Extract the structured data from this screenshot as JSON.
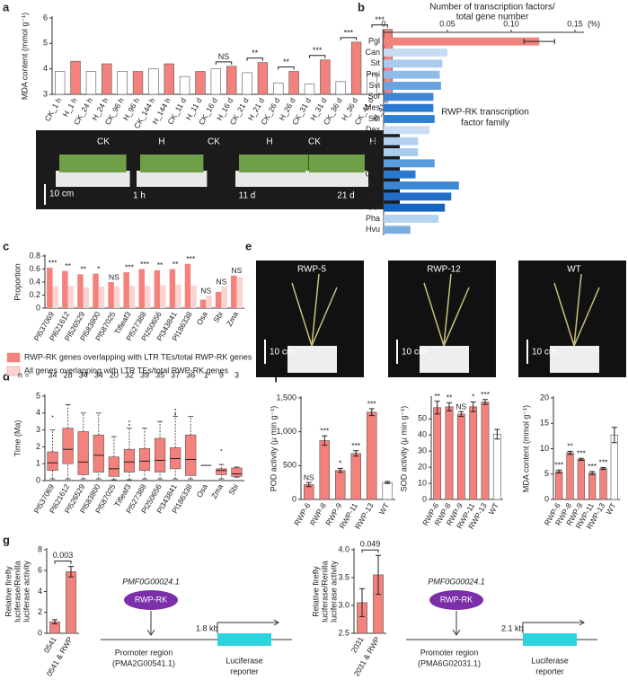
{
  "panel_labels": [
    "a",
    "b",
    "c",
    "d",
    "e",
    "f",
    "g"
  ],
  "photos": {
    "a": {
      "labels": [
        "CK",
        "H",
        "CK",
        "H",
        "CK",
        "H"
      ],
      "times": [
        "1 h",
        "11 d",
        "21 d"
      ],
      "scale": "10 cm"
    },
    "e": {
      "labels": [
        "RWP-5",
        "RWP-12",
        "WT"
      ],
      "scale": "10 cm"
    }
  },
  "diagrams": [
    {
      "tf_gene": "PMF0G00024.1",
      "tf": "RWP-RK",
      "distance": "1.8 kb",
      "promoter": [
        "Promoter region",
        "(PMA2G00541.1)"
      ],
      "reporter": [
        "Luciferase",
        "reporter"
      ]
    },
    {
      "tf_gene": "PMF0G00024.1",
      "tf": "RWP-RK",
      "distance": "2.1 kb",
      "promoter": [
        "Promoter region",
        "(PMA6G02031.1)"
      ],
      "reporter": [
        "Luciferase",
        "reporter"
      ]
    }
  ],
  "chart_data": [
    {
      "type": "bar",
      "ylabel": [
        "MDA content (mmol g⁻¹)"
      ],
      "bracket": true,
      "categories": [
        "CK_1 h",
        "H_1 h",
        "CK_24 h",
        "H_24 h",
        "CK_96 h",
        "H_96 h",
        "CK_144 h",
        "H_144 h",
        "CK_11 d",
        "H_11 d",
        "CK_16 d",
        "H_16 d",
        "CK_21 d",
        "H_21 d",
        "CK_26 d",
        "H_26 d",
        "CK_31 d",
        "H_31 d",
        "CK_36 d",
        "H_36 d",
        "CK_41 d",
        "H_41 d"
      ],
      "values": [
        3.9,
        4.3,
        3.9,
        4.2,
        3.9,
        3.9,
        4.0,
        4.2,
        3.7,
        3.9,
        4.0,
        4.1,
        3.85,
        4.25,
        3.45,
        3.9,
        3.4,
        4.35,
        3.5,
        5.05,
        3.8,
        5.55
      ],
      "colors": [
        "#ffffff",
        "#f4827c",
        "#ffffff",
        "#f4827c",
        "#ffffff",
        "#f4827c",
        "#ffffff",
        "#f4827c",
        "#ffffff",
        "#f4827c",
        "#ffffff",
        "#f4827c",
        "#ffffff",
        "#f4827c",
        "#ffffff",
        "#f4827c",
        "#ffffff",
        "#f4827c",
        "#ffffff",
        "#f4827c",
        "#ffffff",
        "#f4827c"
      ],
      "significance": [
        null,
        null,
        null,
        null,
        null,
        null,
        null,
        null,
        null,
        null,
        null,
        "NS",
        null,
        "**",
        null,
        "**",
        null,
        "***",
        null,
        "***",
        null,
        "***"
      ],
      "ylim": [
        3,
        6
      ],
      "yticks": [
        3,
        4,
        5,
        6
      ]
    },
    {
      "type": "hbar",
      "title": [
        "Number of transcription factors/",
        "total gene number"
      ],
      "unit": "(%)",
      "annotation": [
        "RWP-RK transcription",
        "factor family"
      ],
      "categories": [
        "Pgl",
        "Can",
        "Sit",
        "Pmi",
        "Svi",
        "Sof",
        "Mes",
        "Sbi",
        "Dex",
        "Dol",
        "Eco",
        "Zma",
        "Osa",
        "Bdi",
        "Ath",
        "Oth",
        "Pha",
        "Hvu"
      ],
      "values": [
        0.122,
        0.05,
        0.046,
        0.044,
        0.045,
        0.039,
        0.039,
        0.04,
        0.036,
        0.027,
        0.027,
        0.04,
        0.025,
        0.059,
        0.053,
        0.048,
        0.043,
        0.021
      ],
      "errors": [
        0.012,
        null,
        null,
        null,
        null,
        null,
        null,
        null,
        null,
        null,
        null,
        null,
        null,
        null,
        null,
        null,
        null,
        null
      ],
      "colors": [
        "#f4827c",
        "#c5dcf2",
        "#a8cbee",
        "#8fbbe8",
        "#6aa4e0",
        "#3e87d6",
        "#2a79cf",
        "#2f7fd2",
        "#c9def3",
        "#b3d2f0",
        "#aacdee",
        "#5a9cdc",
        "#2a79cf",
        "#3b86d6",
        "#1f6fc8",
        "#1565c0",
        "#b4d3f0",
        "#7aaee3"
      ],
      "xlim": [
        0,
        0.15
      ],
      "xticks": [
        0,
        0.05,
        {
          "value": 0.1,
          "label": "0.10"
        },
        0.15
      ]
    },
    {
      "type": "bar",
      "ylabel": [
        "Proportion"
      ],
      "categories": [
        "Pl537069",
        "Pl621612",
        "Pl526529",
        "Pl583800",
        "Pl587025",
        "Tifleaf3",
        "Pl527388",
        "Pl250656",
        "Pl343841",
        "Pl186338",
        "Osa",
        "Sbi",
        "Zma"
      ],
      "series": [
        {
          "name": "RWP-RK genes overlapping with LTR TEs/total RWP-RK genes",
          "color": "#f4827c",
          "values": [
            0.62,
            0.57,
            0.52,
            0.53,
            0.4,
            0.55,
            0.6,
            0.58,
            0.6,
            0.68,
            0.13,
            0.25,
            0.5
          ]
        },
        {
          "name": "All genes overlapping with LTR TEs/total RWP-RK genes",
          "color": "#fbd3d0",
          "values": [
            0.34,
            0.34,
            0.32,
            0.33,
            0.33,
            0.34,
            0.34,
            0.35,
            0.36,
            0.35,
            0.19,
            0.33,
            0.48
          ]
        }
      ],
      "significance": [
        "***",
        "**",
        "**",
        "*",
        "NS",
        "***",
        "***",
        "**",
        "**",
        "***",
        "NS",
        "NS",
        "NS"
      ],
      "ylim": [
        0,
        0.8
      ],
      "yticks": [
        0,
        0.2,
        0.4,
        0.6,
        0.8
      ]
    },
    {
      "type": "box",
      "ylabel": [
        "Time (Ma)"
      ],
      "n_label": "n =",
      "n": [
        34,
        28,
        34,
        34,
        20,
        32,
        39,
        35,
        37,
        36,
        1,
        9,
        3
      ],
      "color": "#f4827c",
      "categories": [
        "Pl537069",
        "Pl621612",
        "Pl526529",
        "Pl583800",
        "Pl587025",
        "Tifleaf3",
        "Pl527388",
        "Pl250656",
        "Pl343841",
        "Pl186338",
        "Osa",
        "Zma",
        "Sbi"
      ],
      "boxes": [
        {
          "min": 0.1,
          "q1": 0.6,
          "median": 1.05,
          "q3": 1.7,
          "max": 3.0,
          "outliers": [
            3.8
          ]
        },
        {
          "min": 0.1,
          "q1": 1.0,
          "median": 1.85,
          "q3": 3.1,
          "max": 4.5,
          "outliers": []
        },
        {
          "min": 0.1,
          "q1": 0.35,
          "median": 1.1,
          "q3": 2.9,
          "max": 4.0,
          "outliers": []
        },
        {
          "min": 0.1,
          "q1": 0.5,
          "median": 1.5,
          "q3": 2.7,
          "max": 4.0,
          "outliers": []
        },
        {
          "min": 0.05,
          "q1": 0.25,
          "median": 0.7,
          "q3": 1.4,
          "max": 2.6,
          "outliers": []
        },
        {
          "min": 0.05,
          "q1": 0.5,
          "median": 1.1,
          "q3": 1.85,
          "max": 3.1,
          "outliers": [
            3.3,
            3.5
          ]
        },
        {
          "min": 0.1,
          "q1": 0.6,
          "median": 1.15,
          "q3": 1.9,
          "max": 3.1,
          "outliers": []
        },
        {
          "min": 0.1,
          "q1": 0.5,
          "median": 1.2,
          "q3": 2.5,
          "max": 3.5,
          "outliers": []
        },
        {
          "min": 0.1,
          "q1": 0.7,
          "median": 1.3,
          "q3": 1.95,
          "max": 3.8,
          "outliers": [
            3.9,
            4.0,
            4.2
          ]
        },
        {
          "min": 0.1,
          "q1": 0.3,
          "median": 1.25,
          "q3": 2.7,
          "max": 3.8,
          "outliers": []
        },
        {
          "median": 0.9,
          "outliers": []
        },
        {
          "min": 0.1,
          "q1": 0.35,
          "median": 0.6,
          "q3": 0.7,
          "max": 0.95,
          "outliers": [
            1.8
          ]
        },
        {
          "min": 0.2,
          "q1": 0.25,
          "median": 0.4,
          "q3": 0.75,
          "max": 0.8,
          "outliers": []
        }
      ],
      "ylim": [
        0,
        5
      ],
      "yticks": [
        0,
        1,
        2,
        3,
        4,
        5
      ]
    },
    {
      "type": "bar",
      "ylabel": [
        "POD activity (μ min g⁻¹)"
      ],
      "categories": [
        "RWP-6",
        "RWP-8",
        "RWP-9",
        "RWP-11",
        "RWP-13",
        "WT"
      ],
      "values": [
        220,
        870,
        430,
        680,
        1290,
        250
      ],
      "errors": [
        30,
        70,
        30,
        40,
        50,
        15
      ],
      "colors": [
        "#f4827c",
        "#f4827c",
        "#f4827c",
        "#f4827c",
        "#f4827c",
        "#ffffff"
      ],
      "significance": [
        "NS",
        "***",
        "*",
        "***",
        "***",
        null
      ],
      "ylim": [
        0,
        1500
      ],
      "yticks": [
        0,
        500,
        {
          "value": 1000,
          "label": "1,000"
        },
        {
          "value": 1500,
          "label": "1,500"
        }
      ]
    },
    {
      "type": "bar",
      "ylabel": [
        "SOD activity (μ min g⁻¹)"
      ],
      "categories": [
        "RWP-6",
        "RWP-8",
        "RWP-9",
        "RWP-11",
        "RWP-13",
        "WT"
      ],
      "values": [
        57,
        57.5,
        53,
        57.5,
        60.5,
        40.5
      ],
      "errors": [
        4,
        2.5,
        1.5,
        3,
        1.5,
        3
      ],
      "colors": [
        "#f4827c",
        "#f4827c",
        "#f4827c",
        "#f4827c",
        "#f4827c",
        "#ffffff"
      ],
      "significance": [
        "**",
        "**",
        "NS",
        "*",
        "***",
        null
      ],
      "ylim": [
        0,
        63
      ],
      "yticks": [
        0,
        10,
        20,
        30,
        40,
        50
      ]
    },
    {
      "type": "bar",
      "ylabel": [
        "MDA content (mmol g⁻¹)"
      ],
      "categories": [
        "RWP-6",
        "RWP-8",
        "RWP-9",
        "RWP-11",
        "RWP-13",
        "WT"
      ],
      "values": [
        5.5,
        9.2,
        7.9,
        5.2,
        6.1,
        12.7
      ],
      "errors": [
        0.3,
        0.3,
        0.2,
        0.3,
        0.2,
        1.5
      ],
      "colors": [
        "#f4827c",
        "#f4827c",
        "#f4827c",
        "#f4827c",
        "#f4827c",
        "#ffffff"
      ],
      "significance": [
        "***",
        "**",
        "***",
        "***",
        "***",
        null
      ],
      "ylim": [
        0,
        20
      ],
      "yticks": [
        0,
        5,
        10,
        15,
        20
      ]
    },
    {
      "type": "bar",
      "ylabel": [
        "Relative firefly",
        "luciferase/Renilla",
        "luciferase activity"
      ],
      "pvalue": "0.003",
      "categories": [
        "0541",
        "0541 & RWP"
      ],
      "values": [
        1.1,
        5.9
      ],
      "errors": [
        0.2,
        0.5
      ],
      "colors": [
        "#f4827c",
        "#f4827c"
      ],
      "ylim": [
        0,
        8
      ],
      "yticks": [
        0,
        2,
        4,
        6,
        8
      ]
    },
    {
      "type": "bar",
      "ylabel": [
        "Relative firefly",
        "luciferase/Renilla",
        "luciferase activity"
      ],
      "pvalue": "0.049",
      "categories": [
        "2031",
        "2031 & RWP"
      ],
      "values": [
        3.05,
        3.55
      ],
      "errors": [
        0.25,
        0.35
      ],
      "colors": [
        "#f4827c",
        "#f4827c"
      ],
      "ylim": [
        2.5,
        4.0
      ],
      "yticks": [
        2.5,
        {
          "value": 3,
          "label": "3.0"
        },
        3.5,
        {
          "value": 4,
          "label": "4.0"
        }
      ]
    }
  ]
}
